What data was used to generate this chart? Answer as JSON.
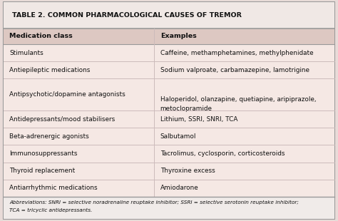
{
  "title": "TABLE 2. COMMON PHARMACOLOGICAL CAUSES OF TREMOR",
  "col_headers": [
    "Medication class",
    "Examples"
  ],
  "rows": [
    [
      "Stimulants",
      "Caffeine, methamphetamines, methylphenidate"
    ],
    [
      "Antiepileptic medications",
      "Sodium valproate, carbamazepine, lamotrigine"
    ],
    [
      "Antipsychotic/dopamine antagonists",
      "Haloperidol, olanzapine, quetiapine, aripiprazole,\nmetoclopramide"
    ],
    [
      "Antidepressants/mood stabilisers",
      "Lithium, SSRI, SNRI, TCA"
    ],
    [
      "Beta-adrenergic agonists",
      "Salbutamol"
    ],
    [
      "Immunosuppressants",
      "Tacrolimus, cyclosporin, corticosteroids"
    ],
    [
      "Thyroid replacement",
      "Thyroxine excess"
    ],
    [
      "Antiarrhythmic medications",
      "Amiodarone"
    ]
  ],
  "footnote": "Abbreviations: SNRI = selective noradrenaline reuptake inhibitor; SSRI = selective serotonin reuptake inhibitor;\nTCA = tricyclic antidepressants.",
  "bg_color": "#f5e8e4",
  "header_bg": "#ddc8c2",
  "title_bg": "#f0e8e5",
  "border_color": "#999999",
  "line_color": "#ccbbbb",
  "title_color": "#111111",
  "text_color": "#111111",
  "col_split": 0.455,
  "outer_bg": "#e8dbd8",
  "footnote_bg": "#f0ebe9"
}
